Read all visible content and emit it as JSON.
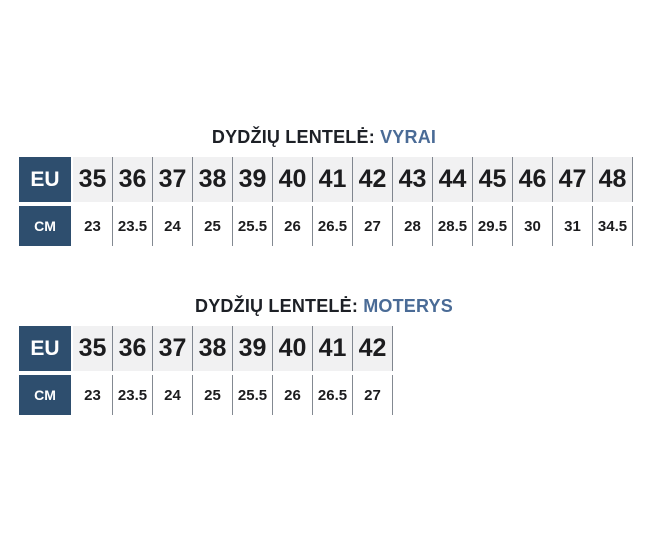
{
  "colors": {
    "header_bg": "#2e4e6e",
    "title_text": "#1d2026",
    "title_highlight": "#4a6b96",
    "eu_row_bg": "#f1f1f2",
    "divider": "rgba(100,108,118,0.8)",
    "number_text": "#1c1c1e",
    "page_bg": "#ffffff"
  },
  "chart_data": [
    {
      "type": "table",
      "title": "DYDŽIŲ LENTELĖ: VYRAI",
      "title_prefix": "DYDŽIŲ LENTELĖ:",
      "title_highlight": "VYRAI",
      "row_headers": [
        "EU",
        "CM"
      ],
      "eu_sizes": [
        35,
        36,
        37,
        38,
        39,
        40,
        41,
        42,
        43,
        44,
        45,
        46,
        47,
        48
      ],
      "cm_values": [
        23,
        23.5,
        24,
        25,
        25.5,
        26,
        26.5,
        27,
        28,
        28.5,
        29.5,
        30,
        31,
        34.5
      ]
    },
    {
      "type": "table",
      "title": "DYDŽIŲ LENTELĖ: MOTERYS",
      "title_prefix": "DYDŽIŲ LENTELĖ:",
      "title_highlight": "MOTERYS",
      "row_headers": [
        "EU",
        "CM"
      ],
      "eu_sizes": [
        35,
        36,
        37,
        38,
        39,
        40,
        41,
        42
      ],
      "cm_values": [
        23,
        23.5,
        24,
        25,
        25.5,
        26,
        26.5,
        27
      ]
    }
  ]
}
